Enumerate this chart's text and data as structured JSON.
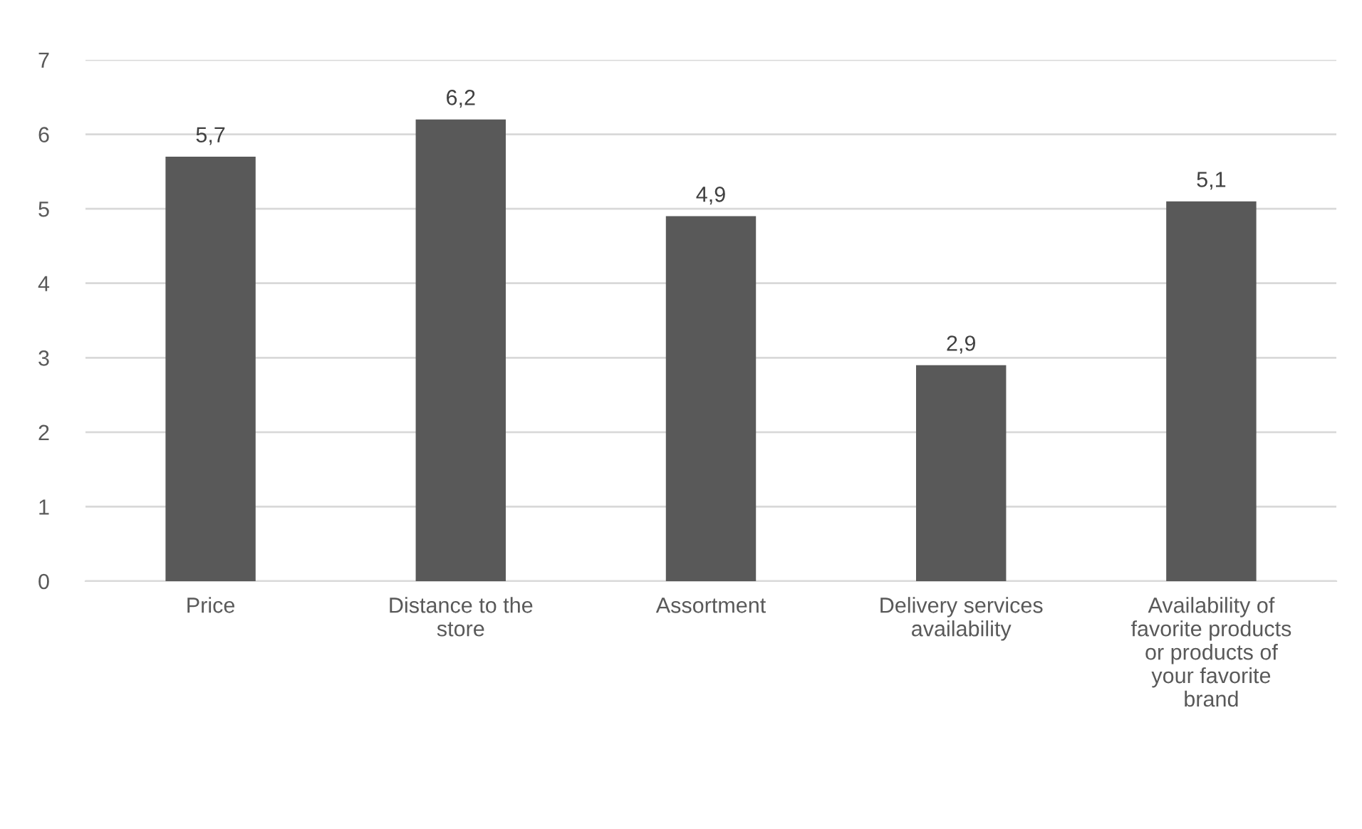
{
  "chart_data": {
    "type": "bar",
    "categories": [
      "Price",
      "Distance to the\nstore",
      "Assortment",
      "Delivery services\navailability",
      "Availability of\nfavorite products\nor products of\nyour favorite\nbrand"
    ],
    "values": [
      5.7,
      6.2,
      4.9,
      2.9,
      5.1
    ],
    "value_labels": [
      "5,7",
      "6,2",
      "4,9",
      "2,9",
      "5,1"
    ],
    "color": "#595959",
    "ylim": [
      0,
      7
    ],
    "yticks": [
      0,
      1,
      2,
      3,
      4,
      5,
      6,
      7
    ],
    "grid": "y",
    "legend": false
  }
}
